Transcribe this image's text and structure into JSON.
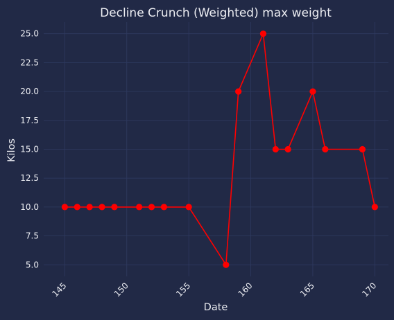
{
  "chart_data": {
    "type": "line",
    "title": "Decline Crunch (Weighted) max weight",
    "xlabel": "Date",
    "ylabel": "Kilos",
    "xlim": [
      143.3,
      171.1
    ],
    "ylim": [
      4.0,
      26.0
    ],
    "xticks": [
      145,
      150,
      155,
      160,
      165,
      170
    ],
    "xtick_labels": [
      "145",
      "150",
      "155",
      "160",
      "165",
      "170"
    ],
    "yticks": [
      5.0,
      7.5,
      10.0,
      12.5,
      15.0,
      17.5,
      20.0,
      22.5,
      25.0
    ],
    "ytick_labels": [
      "5.0",
      "7.5",
      "10.0",
      "12.5",
      "15.0",
      "17.5",
      "20.0",
      "22.5",
      "25.0"
    ],
    "grid": true,
    "series": [
      {
        "color": "#ff0000",
        "marker": "circle",
        "x": [
          145,
          146,
          147,
          148,
          149,
          151,
          152,
          153,
          155,
          158,
          159,
          161,
          162,
          163,
          165,
          166,
          169,
          170
        ],
        "y": [
          10,
          10,
          10,
          10,
          10,
          10,
          10,
          10,
          10,
          5,
          20,
          25,
          15,
          15,
          20,
          15,
          15,
          10
        ]
      }
    ]
  },
  "colors": {
    "background": "#212946",
    "grid": "#2f3a60",
    "text": "#ecedf2",
    "series": "#ff0000"
  }
}
